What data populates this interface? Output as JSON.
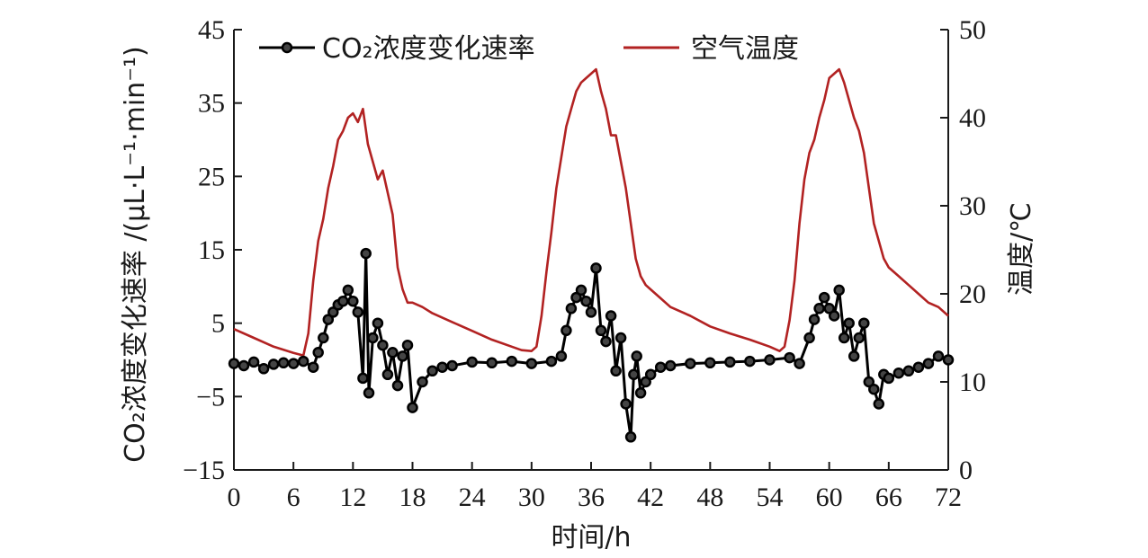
{
  "chart_data": {
    "type": "line",
    "xlabel": "时间/h",
    "ylabel_left": "CO₂浓度变化速率 /(μL·L⁻¹·min⁻¹)",
    "ylabel_right": "温度/℃",
    "x_range": [
      0,
      72
    ],
    "x_ticks": [
      "0",
      "6",
      "12",
      "18",
      "24",
      "30",
      "36",
      "42",
      "48",
      "54",
      "60",
      "66",
      "72"
    ],
    "y_left_range": [
      -15,
      45
    ],
    "y_left_ticks": [
      "−15",
      "−5",
      "5",
      "15",
      "25",
      "35",
      "45"
    ],
    "y_right_range": [
      0,
      50
    ],
    "y_right_ticks": [
      "0",
      "10",
      "20",
      "30",
      "40",
      "50"
    ],
    "grid": false,
    "legend_position": "top",
    "series": [
      {
        "name": "CO₂浓度变化速率",
        "axis": "left",
        "color": "#000000",
        "marker": "circle",
        "x": [
          0,
          1,
          2,
          3,
          4,
          5,
          6,
          7,
          8,
          8.5,
          9,
          9.5,
          10,
          10.5,
          11,
          11.5,
          12,
          12.5,
          13,
          13.3,
          13.6,
          14,
          14.5,
          15,
          15.5,
          16,
          16.5,
          17,
          17.5,
          18,
          19,
          20,
          21,
          22,
          24,
          26,
          28,
          30,
          32,
          33,
          33.5,
          34,
          34.5,
          35,
          35.5,
          36,
          36.5,
          37,
          37.5,
          38,
          38.5,
          39,
          39.5,
          40,
          40.3,
          40.6,
          41,
          41.5,
          42,
          43,
          44,
          46,
          48,
          50,
          52,
          54,
          56,
          57,
          58,
          58.5,
          59,
          59.5,
          60,
          60.5,
          61,
          61.5,
          62,
          62.5,
          63,
          63.5,
          64,
          64.5,
          65,
          65.5,
          66,
          67,
          68,
          69,
          70,
          71,
          72
        ],
        "y": [
          -0.5,
          -0.8,
          -0.3,
          -1.2,
          -0.6,
          -0.4,
          -0.5,
          -0.2,
          -1.0,
          1.0,
          3.0,
          5.5,
          6.5,
          7.5,
          8.0,
          9.5,
          8.0,
          6.5,
          -2.5,
          14.5,
          -4.5,
          3.0,
          5.0,
          2.0,
          -2.0,
          1.0,
          -3.5,
          0.5,
          2.0,
          -6.5,
          -3.0,
          -1.5,
          -1.0,
          -0.8,
          -0.3,
          -0.4,
          -0.2,
          -0.5,
          -0.2,
          0.5,
          4.0,
          7.0,
          8.5,
          9.5,
          8.0,
          6.5,
          12.5,
          4.0,
          2.5,
          6.0,
          -1.5,
          3.0,
          -6.0,
          -10.5,
          -2.0,
          0.5,
          -4.5,
          -3.0,
          -2.0,
          -1.0,
          -0.8,
          -0.5,
          -0.4,
          -0.3,
          -0.2,
          0.0,
          0.3,
          -0.5,
          3.0,
          5.5,
          7.0,
          8.5,
          7.0,
          6.0,
          9.5,
          3.0,
          5.0,
          0.5,
          3.0,
          5.0,
          -3.0,
          -4.0,
          -6.0,
          -2.0,
          -2.5,
          -1.8,
          -1.5,
          -1.0,
          -0.5,
          0.5,
          0.0
        ]
      },
      {
        "name": "空气温度",
        "axis": "right",
        "color": "#b22222",
        "marker": "none",
        "x": [
          0,
          2,
          4,
          6,
          7,
          7.5,
          8,
          8.5,
          9,
          9.5,
          10,
          10.5,
          11,
          11.5,
          12,
          12.5,
          13,
          13.5,
          14,
          14.5,
          15,
          15.5,
          16,
          16.5,
          17,
          17.5,
          18,
          19,
          20,
          22,
          24,
          26,
          28,
          29,
          30,
          30.5,
          31,
          31.5,
          32,
          32.5,
          33,
          33.5,
          34,
          34.5,
          35,
          35.5,
          36,
          36.5,
          37,
          37.5,
          38,
          38.5,
          39,
          39.5,
          40,
          40.5,
          41,
          41.5,
          42,
          43,
          44,
          46,
          48,
          50,
          52,
          54,
          55,
          55.5,
          56,
          56.5,
          57,
          57.5,
          58,
          58.5,
          59,
          59.5,
          60,
          60.5,
          61,
          61.5,
          62,
          62.5,
          63,
          63.5,
          64,
          64.5,
          65,
          65.5,
          66,
          67,
          68,
          69,
          70,
          71,
          72
        ],
        "y": [
          16.0,
          15.0,
          14.0,
          13.3,
          13.0,
          15.5,
          21.5,
          26.0,
          28.5,
          32.0,
          34.5,
          37.5,
          38.5,
          40.0,
          40.5,
          39.5,
          41.0,
          37.0,
          35.0,
          33.0,
          34.0,
          31.5,
          29.0,
          23.0,
          20.5,
          19.0,
          19.0,
          18.5,
          17.8,
          16.8,
          15.8,
          14.8,
          14.0,
          13.6,
          13.5,
          14.0,
          17.5,
          22.5,
          27.0,
          32.0,
          35.5,
          39.0,
          41.0,
          43.0,
          44.0,
          44.5,
          45.0,
          45.5,
          43.0,
          41.0,
          38.0,
          38.0,
          35.0,
          32.0,
          28.0,
          24.0,
          22.0,
          21.0,
          20.5,
          19.5,
          18.5,
          17.5,
          16.3,
          15.5,
          14.8,
          14.0,
          13.5,
          14.0,
          17.0,
          21.5,
          28.0,
          33.0,
          36.0,
          37.5,
          40.0,
          42.0,
          44.5,
          45.0,
          45.5,
          44.0,
          42.0,
          40.0,
          38.5,
          36.0,
          32.0,
          28.0,
          26.0,
          24.0,
          23.0,
          22.0,
          21.0,
          20.0,
          19.0,
          18.5,
          17.5
        ]
      }
    ]
  }
}
